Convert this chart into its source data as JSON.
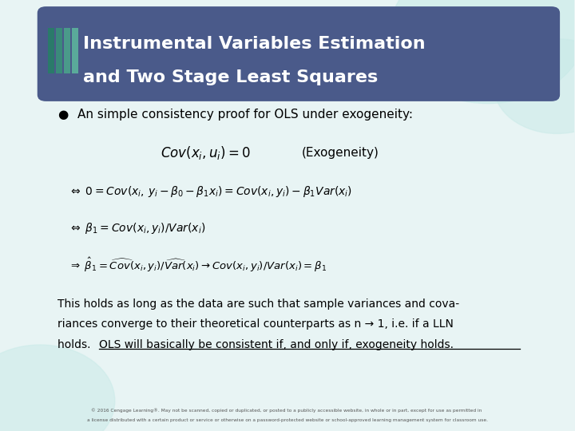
{
  "title_line1": "Instrumental Variables Estimation",
  "title_line2": "and Two Stage Least Squares",
  "title_bg_color": "#4a5a8a",
  "title_text_color": "#ffffff",
  "slide_bg_color": "#e8f4f4",
  "bullet_text": "An simple consistency proof for OLS under exogeneity:",
  "eq1": "$Cov(x_i, u_i) = 0$",
  "eq1_label": "(Exogeneity)",
  "eq2": "$\\Leftrightarrow\\;0 = Cov(x_i,\\, y_i - \\beta_0 - \\beta_1 x_i) = Cov(x_i, y_i) - \\beta_1 Var(x_i)$",
  "eq3": "$\\Leftrightarrow\\;\\beta_1 = Cov(x_i, y_i)/Var(x_i)$",
  "eq4": "$\\Rightarrow\\;\\hat{\\beta}_1 = \\widehat{Cov}(x_i, y_i)/\\widehat{Var}(x_i) \\rightarrow Cov(x_i, y_i)/Var(x_i) = \\beta_1$",
  "body_text1": "This holds as long as the data are such that sample variances and cova-",
  "body_text2": "riances converge to their theoretical counterparts as n → 1, i.e. if a LLN",
  "body_text3_prefix": "holds. ",
  "body_text3_underlined": "OLS will basically be consistent if, and only if, exogeneity holds.",
  "footer_text": "© 2016 Cengage Learning®. May not be scanned, copied or duplicated, or posted to a publicly accessible website, in whole or in part, except for use as permitted in a license distributed with a certain product or service or otherwise on a password-protected website or school-approved learning management system for classroom use.",
  "decoration_colors": [
    "#2a7a6a",
    "#3a8a7a",
    "#4a9a8a",
    "#5aaa9a"
  ],
  "circle_color": "#c8eae8"
}
